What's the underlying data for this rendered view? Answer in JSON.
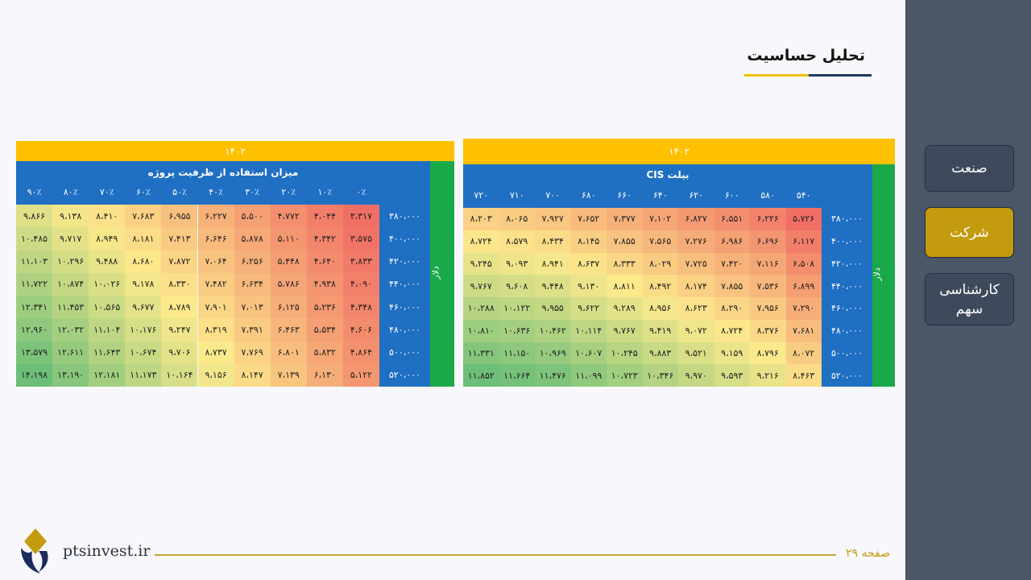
{
  "page_title": "تحلیل حساسیت",
  "nav": [
    {
      "label": "صنعت",
      "active": false
    },
    {
      "label": "شرکت",
      "active": true
    },
    {
      "label": "کارشناسی سهم",
      "active": false
    }
  ],
  "footer": {
    "site": "ptsinvest.ir",
    "page_label": "صفحه ۲۹"
  },
  "colors": {
    "sidebar": "#4a5766",
    "accent_gold": "#c49a0e",
    "header_blue": "#1f6fc3",
    "year_bar": "#ffc000",
    "side_green": "#19a84a"
  },
  "tables": {
    "right": {
      "year": "۱۴۰۲",
      "variable": "بیلت CIS",
      "side_label": "دلار",
      "columns": [
        "۵۴۰",
        "۵۸۰",
        "۶۰۰",
        "۶۲۰",
        "۶۴۰",
        "۶۶۰",
        "۶۸۰",
        "۷۰۰",
        "۷۱۰",
        "۷۲۰"
      ],
      "rows": [
        "۳۸۰،۰۰۰",
        "۴۰۰،۰۰۰",
        "۴۲۰،۰۰۰",
        "۴۴۰،۰۰۰",
        "۴۶۰،۰۰۰",
        "۴۸۰،۰۰۰",
        "۵۰۰،۰۰۰",
        "۵۲۰،۰۰۰"
      ],
      "values": [
        [
          "۵،۷۲۶",
          "۶،۲۲۶",
          "۶،۵۵۱",
          "۶،۸۲۷",
          "۷،۱۰۲",
          "۷،۳۷۷",
          "۷،۶۵۲",
          "۷،۹۲۷",
          "۸،۰۶۵",
          "۸،۲۰۳"
        ],
        [
          "۶،۱۱۷",
          "۶،۶۹۶",
          "۶،۹۸۶",
          "۷،۲۷۶",
          "۷،۵۶۵",
          "۷،۸۵۵",
          "۸،۱۴۵",
          "۸،۴۳۴",
          "۸،۵۷۹",
          "۸،۷۲۴"
        ],
        [
          "۶،۵۰۸",
          "۷،۱۱۶",
          "۷،۴۲۰",
          "۷،۷۲۵",
          "۸،۰۲۹",
          "۸،۳۳۳",
          "۸،۶۳۷",
          "۸،۹۴۱",
          "۹،۰۹۳",
          "۹،۲۴۵"
        ],
        [
          "۶،۸۹۹",
          "۷،۵۳۶",
          "۷،۸۵۵",
          "۸،۱۷۴",
          "۸،۴۹۲",
          "۸،۸۱۱",
          "۹،۱۳۰",
          "۹،۴۴۸",
          "۹،۶۰۸",
          "۹،۷۶۷"
        ],
        [
          "۷،۲۹۰",
          "۷،۹۵۶",
          "۸،۲۹۰",
          "۸،۶۲۳",
          "۸،۹۵۶",
          "۹،۲۸۹",
          "۹،۶۲۲",
          "۹،۹۵۵",
          "۱۰،۱۲۲",
          "۱۰،۲۸۸"
        ],
        [
          "۷،۶۸۱",
          "۸،۳۷۶",
          "۸،۷۲۴",
          "۹،۰۷۲",
          "۹،۴۱۹",
          "۹،۷۶۷",
          "۱۰،۱۱۴",
          "۱۰،۴۶۲",
          "۱۰،۶۳۶",
          "۱۰،۸۱۰"
        ],
        [
          "۸،۰۷۲",
          "۸،۷۹۶",
          "۹،۱۵۹",
          "۹،۵۲۱",
          "۹،۸۸۳",
          "۱۰،۲۴۵",
          "۱۰،۶۰۷",
          "۱۰،۹۶۹",
          "۱۱،۱۵۰",
          "۱۱،۳۳۱"
        ],
        [
          "۸،۴۶۳",
          "۹،۲۱۶",
          "۹،۵۹۳",
          "۹،۹۷۰",
          "۱۰،۳۴۶",
          "۱۰،۷۲۳",
          "۱۱،۰۹۹",
          "۱۱،۴۷۶",
          "۱۱،۶۶۴",
          "۱۱،۸۵۲"
        ]
      ]
    },
    "left": {
      "year": "۱۴۰۲",
      "variable": "میزان استفاده از ظرفیت پروژه",
      "side_label": "دلار",
      "columns": [
        "۰٪",
        "۱۰٪",
        "۲۰٪",
        "۳۰٪",
        "۴۰٪",
        "۵۰٪",
        "۶۰٪",
        "۷۰٪",
        "۸۰٪",
        "۹۰٪"
      ],
      "rows": [
        "۳۸۰،۰۰۰",
        "۴۰۰،۰۰۰",
        "۴۲۰،۰۰۰",
        "۴۴۰،۰۰۰",
        "۴۶۰،۰۰۰",
        "۴۸۰،۰۰۰",
        "۵۰۰،۰۰۰",
        "۵۲۰،۰۰۰"
      ],
      "values": [
        [
          "۳،۳۱۷",
          "۴،۰۴۴",
          "۴،۷۷۲",
          "۵،۵۰۰",
          "۶،۲۲۷",
          "۶،۹۵۵",
          "۷،۶۸۳",
          "۸،۴۱۰",
          "۹،۱۳۸",
          "۹،۸۶۶"
        ],
        [
          "۳،۵۷۵",
          "۴،۳۴۲",
          "۵،۱۱۰",
          "۵،۸۷۸",
          "۶،۶۴۶",
          "۷،۴۱۳",
          "۸،۱۸۱",
          "۸،۹۴۹",
          "۹،۷۱۷",
          "۱۰،۴۸۵"
        ],
        [
          "۳،۸۳۳",
          "۴،۶۴۰",
          "۵،۴۴۸",
          "۶،۲۵۶",
          "۷،۰۶۴",
          "۷،۸۷۲",
          "۸،۶۸۰",
          "۹،۴۸۸",
          "۱۰،۲۹۶",
          "۱۱،۱۰۳"
        ],
        [
          "۴،۰۹۰",
          "۴،۹۳۸",
          "۵،۷۸۶",
          "۶،۶۳۴",
          "۷،۴۸۲",
          "۸،۳۳۰",
          "۹،۱۷۸",
          "۱۰،۰۲۶",
          "۱۰،۸۷۴",
          "۱۱،۷۲۲"
        ],
        [
          "۴،۳۴۸",
          "۵،۲۳۶",
          "۶،۱۲۵",
          "۷،۰۱۳",
          "۷،۹۰۱",
          "۸،۷۸۹",
          "۹،۶۷۷",
          "۱۰،۵۶۵",
          "۱۱،۴۵۳",
          "۱۲،۳۴۱"
        ],
        [
          "۴،۶۰۶",
          "۵،۵۳۴",
          "۶،۴۶۳",
          "۷،۳۹۱",
          "۸،۳۱۹",
          "۹،۲۴۷",
          "۱۰،۱۷۶",
          "۱۱،۱۰۴",
          "۱۲،۰۳۲",
          "۱۲،۹۶۰"
        ],
        [
          "۴،۸۶۴",
          "۵،۸۳۲",
          "۶،۸۰۱",
          "۷،۷۶۹",
          "۸،۷۳۷",
          "۹،۷۰۶",
          "۱۰،۶۷۴",
          "۱۱،۶۴۳",
          "۱۲،۶۱۱",
          "۱۳،۵۷۹"
        ],
        [
          "۵،۱۲۲",
          "۶،۱۳۰",
          "۷،۱۳۹",
          "۸،۱۴۷",
          "۹،۱۵۶",
          "۱۰،۱۶۴",
          "۱۱،۱۷۳",
          "۱۲،۱۸۱",
          "۱۳،۱۹۰",
          "۱۴،۱۹۸"
        ]
      ]
    }
  }
}
